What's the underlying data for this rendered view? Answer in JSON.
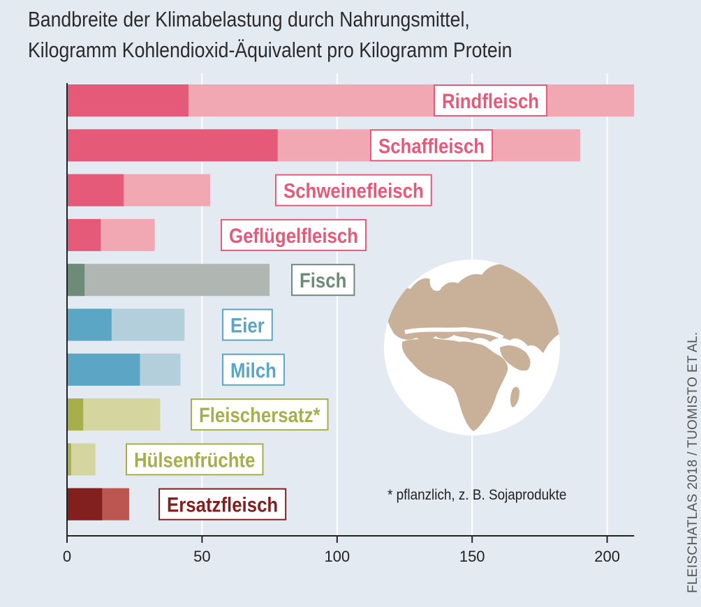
{
  "title": "Bandbreite der Klimabelastung durch Nahrungsmittel,",
  "subtitle": "Kilogramm Kohlendioxid-Äquivalent pro Kilogramm Protein",
  "footnote": "* pflanzlich, z. B. Sojaprodukte",
  "source": "FLEISCHATLAS 2018 / TUOMISTO ET AL.",
  "globe_icon": "globe-africa-europe-icon",
  "chart_data": {
    "type": "bar",
    "orientation": "horizontal",
    "title": "Bandbreite der Klimabelastung durch Nahrungsmittel,",
    "subtitle": "Kilogramm Kohlendioxid-Äquivalent pro Kilogramm Protein",
    "xlim": [
      0,
      210
    ],
    "xticks": [
      0,
      50,
      100,
      150,
      200
    ],
    "grid": "vertical",
    "series": [
      {
        "label": "Rindfleisch",
        "min": 45,
        "max": 210,
        "color_dark": "#e65a79",
        "color_light": "#f2a8b3",
        "label_color": "#e65a79"
      },
      {
        "label": "Schaffleisch",
        "min": 78,
        "max": 190,
        "color_dark": "#e65a79",
        "color_light": "#f2a8b3",
        "label_color": "#e65a79"
      },
      {
        "label": "Schweinefleisch",
        "min": 21,
        "max": 53,
        "color_dark": "#e65a79",
        "color_light": "#f2a8b3",
        "label_color": "#e65a79"
      },
      {
        "label": "Geflügelfleisch",
        "min": 12.5,
        "max": 32.5,
        "color_dark": "#e65a79",
        "color_light": "#f2a8b3",
        "label_color": "#e65a79"
      },
      {
        "label": "Fisch",
        "min": 6.5,
        "max": 75,
        "color_dark": "#6e8a78",
        "color_light": "#b0b7b2",
        "label_color": "#6e8a78"
      },
      {
        "label": "Eier",
        "min": 16.5,
        "max": 43.5,
        "color_dark": "#5aa6c4",
        "color_light": "#b3cfdc",
        "label_color": "#5aa6c4"
      },
      {
        "label": "Milch",
        "min": 27,
        "max": 42,
        "color_dark": "#5aa6c4",
        "color_light": "#b3cfdc",
        "label_color": "#5aa6c4"
      },
      {
        "label": "Fleischersatz*",
        "min": 6,
        "max": 34.5,
        "color_dark": "#a7ae4c",
        "color_light": "#d5d5a0",
        "label_color": "#a7ae4c"
      },
      {
        "label": "Hülsenfrüchte",
        "min": 1.5,
        "max": 10.5,
        "color_dark": "#a7ae4c",
        "color_light": "#d5d5a0",
        "label_color": "#a7ae4c"
      },
      {
        "label": "Ersatzfleisch",
        "min": 13,
        "max": 23,
        "color_dark": "#82201f",
        "color_light": "#bc5651",
        "label_color": "#82201f"
      }
    ]
  }
}
